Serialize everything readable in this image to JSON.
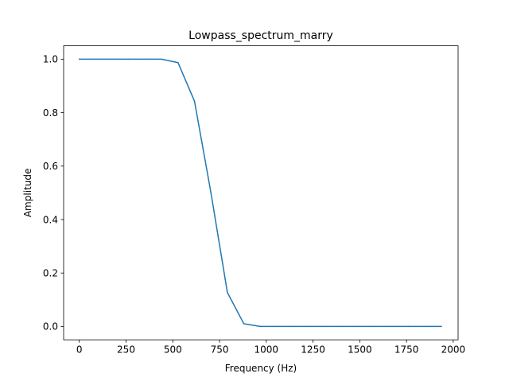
{
  "chart_data": {
    "type": "line",
    "title": "Lowpass_spectrum_marry",
    "xlabel": "Frequency (Hz)",
    "ylabel": "Amplitude",
    "xlim": [
      -84,
      2026
    ],
    "ylim": [
      -0.05,
      1.05
    ],
    "xticks": [
      0,
      250,
      500,
      750,
      1000,
      1250,
      1500,
      1750,
      2000
    ],
    "yticks": [
      0.0,
      0.2,
      0.4,
      0.6,
      0.8,
      1.0
    ],
    "xtick_labels": [
      "0",
      "250",
      "500",
      "750",
      "1000",
      "1250",
      "1500",
      "1750",
      "2000"
    ],
    "ytick_labels": [
      "0.0",
      "0.2",
      "0.4",
      "0.6",
      "0.8",
      "1.0"
    ],
    "grid": false,
    "series": [
      {
        "color": "#1f77b4",
        "x": [
          0,
          88,
          176,
          264,
          352,
          440,
          528,
          616,
          704,
          792,
          880,
          968,
          1056,
          1144,
          1232,
          1320,
          1408,
          1496,
          1584,
          1672,
          1760,
          1848,
          1936
        ],
        "y": [
          1.0,
          1.0,
          1.0,
          1.0,
          1.0,
          1.0,
          0.987,
          0.843,
          0.5,
          0.127,
          0.01,
          0.0,
          0.0,
          0.0,
          0.0,
          0.0,
          0.0,
          0.0,
          0.0,
          0.0,
          0.0,
          0.0,
          0.0
        ]
      }
    ]
  }
}
